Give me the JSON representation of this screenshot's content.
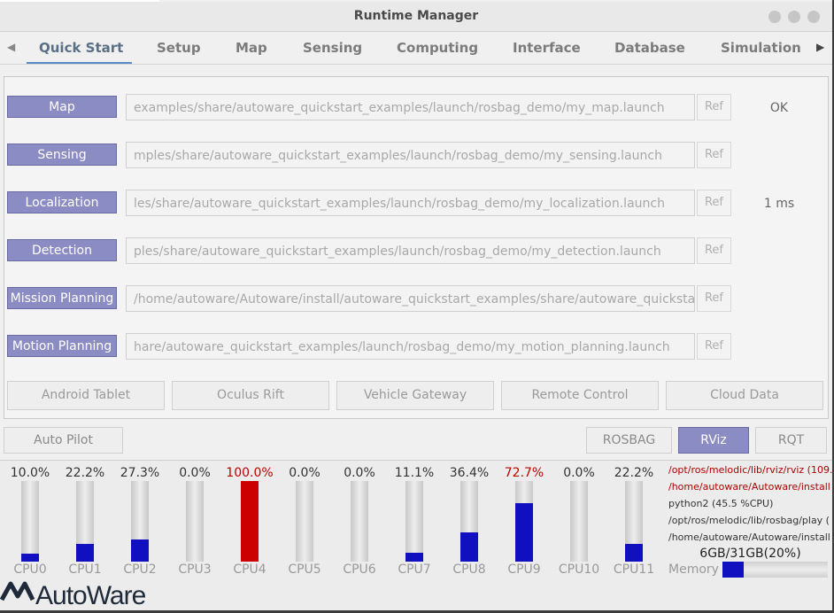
{
  "window": {
    "title": "Runtime Manager"
  },
  "tabs": [
    {
      "label": "Quick Start",
      "active": true
    },
    {
      "label": "Setup",
      "active": false
    },
    {
      "label": "Map",
      "active": false
    },
    {
      "label": "Sensing",
      "active": false
    },
    {
      "label": "Computing",
      "active": false
    },
    {
      "label": "Interface",
      "active": false
    },
    {
      "label": "Database",
      "active": false
    },
    {
      "label": "Simulation",
      "active": false
    }
  ],
  "quick_start": {
    "rows": [
      {
        "label": "Map",
        "path": "examples/share/autoware_quickstart_examples/launch/rosbag_demo/my_map.launch",
        "ref": "Ref",
        "status": "OK"
      },
      {
        "label": "Sensing",
        "path": "mples/share/autoware_quickstart_examples/launch/rosbag_demo/my_sensing.launch",
        "ref": "Ref",
        "status": ""
      },
      {
        "label": "Localization",
        "path": "les/share/autoware_quickstart_examples/launch/rosbag_demo/my_localization.launch",
        "ref": "Ref",
        "status": "1 ms"
      },
      {
        "label": "Detection",
        "path": "ples/share/autoware_quickstart_examples/launch/rosbag_demo/my_detection.launch",
        "ref": "Ref",
        "status": ""
      },
      {
        "label": "Mission Planning",
        "path": "/home/autoware/Autoware/install/autoware_quickstart_examples/share/autoware_quickstart_examples",
        "ref": "Ref",
        "status": ""
      },
      {
        "label": "Motion Planning",
        "path": "hare/autoware_quickstart_examples/launch/rosbag_demo/my_motion_planning.launch",
        "ref": "Ref",
        "status": ""
      }
    ],
    "options": [
      "Android Tablet",
      "Oculus Rift",
      "Vehicle Gateway",
      "Remote Control",
      "Cloud Data"
    ]
  },
  "toolbar": {
    "auto_pilot": "Auto Pilot",
    "rosbag": "ROSBAG",
    "rviz": "RViz",
    "rqt": "RQT"
  },
  "cpus": [
    {
      "label": "CPU0",
      "percent_text": "10.0%",
      "value": 10.0
    },
    {
      "label": "CPU1",
      "percent_text": "22.2%",
      "value": 22.2
    },
    {
      "label": "CPU2",
      "percent_text": "27.3%",
      "value": 27.3
    },
    {
      "label": "CPU3",
      "percent_text": "0.0%",
      "value": 0.0
    },
    {
      "label": "CPU4",
      "percent_text": "100.0%",
      "value": 100.0
    },
    {
      "label": "CPU5",
      "percent_text": "0.0%",
      "value": 0.0
    },
    {
      "label": "CPU6",
      "percent_text": "0.0%",
      "value": 0.0
    },
    {
      "label": "CPU7",
      "percent_text": "11.1%",
      "value": 11.1
    },
    {
      "label": "CPU8",
      "percent_text": "36.4%",
      "value": 36.4
    },
    {
      "label": "CPU9",
      "percent_text": "72.7%",
      "value": 72.7
    },
    {
      "label": "CPU10",
      "percent_text": "0.0%",
      "value": 0.0
    },
    {
      "label": "CPU11",
      "percent_text": "22.2%",
      "value": 22.2
    }
  ],
  "processes": [
    {
      "text": "/opt/ros/melodic/lib/rviz/rviz (109.",
      "color": "red"
    },
    {
      "text": "/home/autoware/Autoware/install",
      "color": "red"
    },
    {
      "text": "python2 (45.5 %CPU)",
      "color": "black"
    },
    {
      "text": "/opt/ros/melodic/lib/rosbag/play (",
      "color": "black"
    },
    {
      "text": "/home/autoware/Autoware/install",
      "color": "black"
    }
  ],
  "memory": {
    "text": "6GB/31GB(20%)",
    "label": "Memory",
    "fraction": 0.2
  },
  "logo": {
    "text": "AutoWare"
  },
  "colors": {
    "accent": "#8c8cc4",
    "cpu_fill": "#1010c0",
    "cpu_hot": "#cc0000"
  }
}
